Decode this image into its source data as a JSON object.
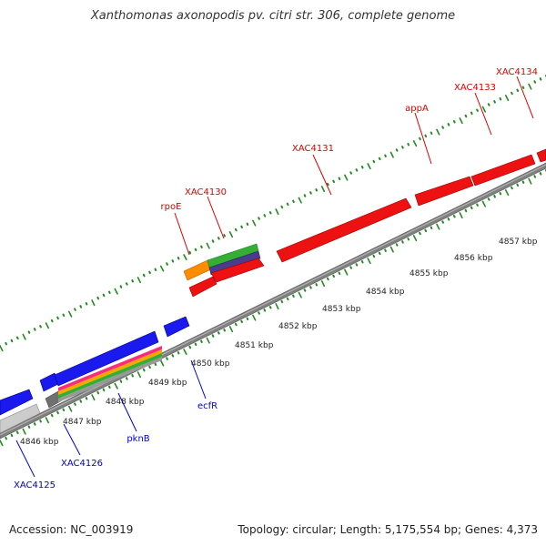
{
  "title": "Xanthomonas axonopodis pv. citri str. 306, complete genome",
  "footer": {
    "accession": "Accession: NC_003919",
    "summary": "Topology: circular; Length: 5,175,554 bp; Genes: 4,373"
  },
  "colors": {
    "forward_label": "#dd0000",
    "reverse_label": "#0000cc",
    "backbone": "#808080",
    "tick": "#228b22"
  },
  "scale_labels": [
    "4846 kbp",
    "4847 kbp",
    "4848 kbp",
    "4849 kbp",
    "4850 kbp",
    "4851 kbp",
    "4852 kbp",
    "4853 kbp",
    "4854 kbp",
    "4855 kbp",
    "4856 kbp",
    "4857 kbp"
  ],
  "forward_gene_labels": [
    "rpoE",
    "XAC4130",
    "XAC4131",
    "appA",
    "XAC4133",
    "XAC4134"
  ],
  "reverse_gene_labels": [
    "XAC4125",
    "XAC4126",
    "pknB",
    "ecfR"
  ]
}
